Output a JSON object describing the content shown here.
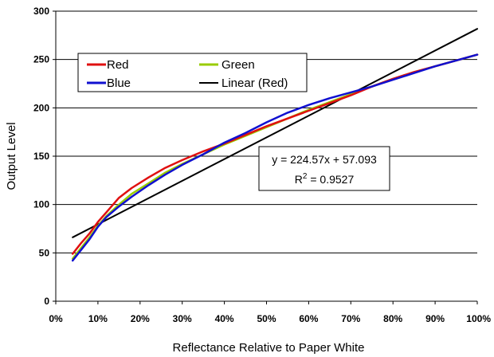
{
  "chart_data": {
    "type": "line",
    "xlabel": "Reflectance Relative to Paper White",
    "ylabel": "Output Level",
    "xlim": [
      0,
      1
    ],
    "ylim": [
      0,
      300
    ],
    "x_ticks": [
      "0%",
      "10%",
      "20%",
      "30%",
      "40%",
      "50%",
      "60%",
      "70%",
      "80%",
      "90%",
      "100%"
    ],
    "y_ticks": [
      "0",
      "50",
      "100",
      "150",
      "200",
      "250",
      "300"
    ],
    "grid": "horizontal",
    "legend_position": "top-left",
    "series": [
      {
        "name": "Red",
        "color": "#e01010",
        "x": [
          0.04,
          0.06,
          0.08,
          0.1,
          0.12,
          0.15,
          0.18,
          0.22,
          0.26,
          0.3,
          0.35,
          0.4,
          0.45,
          0.5,
          0.55,
          0.6,
          0.65,
          0.7,
          0.75,
          0.8,
          0.85,
          0.9,
          0.95,
          1.0
        ],
        "y": [
          49,
          60,
          70,
          82,
          92,
          107,
          117,
          128,
          138,
          146,
          155,
          163,
          172,
          181,
          189,
          197,
          205,
          213,
          222,
          230,
          237,
          243,
          249,
          255
        ]
      },
      {
        "name": "Green",
        "color": "#99cc00",
        "x": [
          0.04,
          0.06,
          0.08,
          0.1,
          0.12,
          0.15,
          0.18,
          0.22,
          0.26,
          0.3,
          0.35,
          0.4,
          0.45,
          0.5,
          0.55,
          0.6,
          0.65,
          0.7,
          0.75,
          0.8,
          0.85,
          0.9,
          0.95,
          1.0
        ],
        "y": [
          44,
          55,
          66,
          78,
          88,
          100,
          111,
          122,
          133,
          142,
          152,
          162,
          171,
          180,
          189,
          198,
          206,
          214,
          222,
          230,
          237,
          243,
          249,
          255
        ]
      },
      {
        "name": "Blue",
        "color": "#1010d0",
        "x": [
          0.04,
          0.06,
          0.08,
          0.1,
          0.12,
          0.15,
          0.18,
          0.22,
          0.26,
          0.3,
          0.35,
          0.4,
          0.45,
          0.5,
          0.55,
          0.6,
          0.65,
          0.7,
          0.75,
          0.8,
          0.85,
          0.9,
          0.95,
          1.0
        ],
        "y": [
          42,
          53,
          64,
          77,
          87,
          98,
          108,
          120,
          131,
          141,
          152,
          164,
          174,
          185,
          195,
          203,
          210,
          216,
          222,
          229,
          236,
          243,
          249,
          255
        ]
      },
      {
        "name": "Linear (Red)",
        "color": "#000000",
        "x": [
          0.04,
          1.0
        ],
        "y": [
          66.1,
          281.7
        ]
      }
    ],
    "trendline": {
      "equation": "y = 224.57x + 57.093",
      "r2_base": "R",
      "r2_exp": "2",
      "r2_value": " = 0.9527"
    }
  }
}
